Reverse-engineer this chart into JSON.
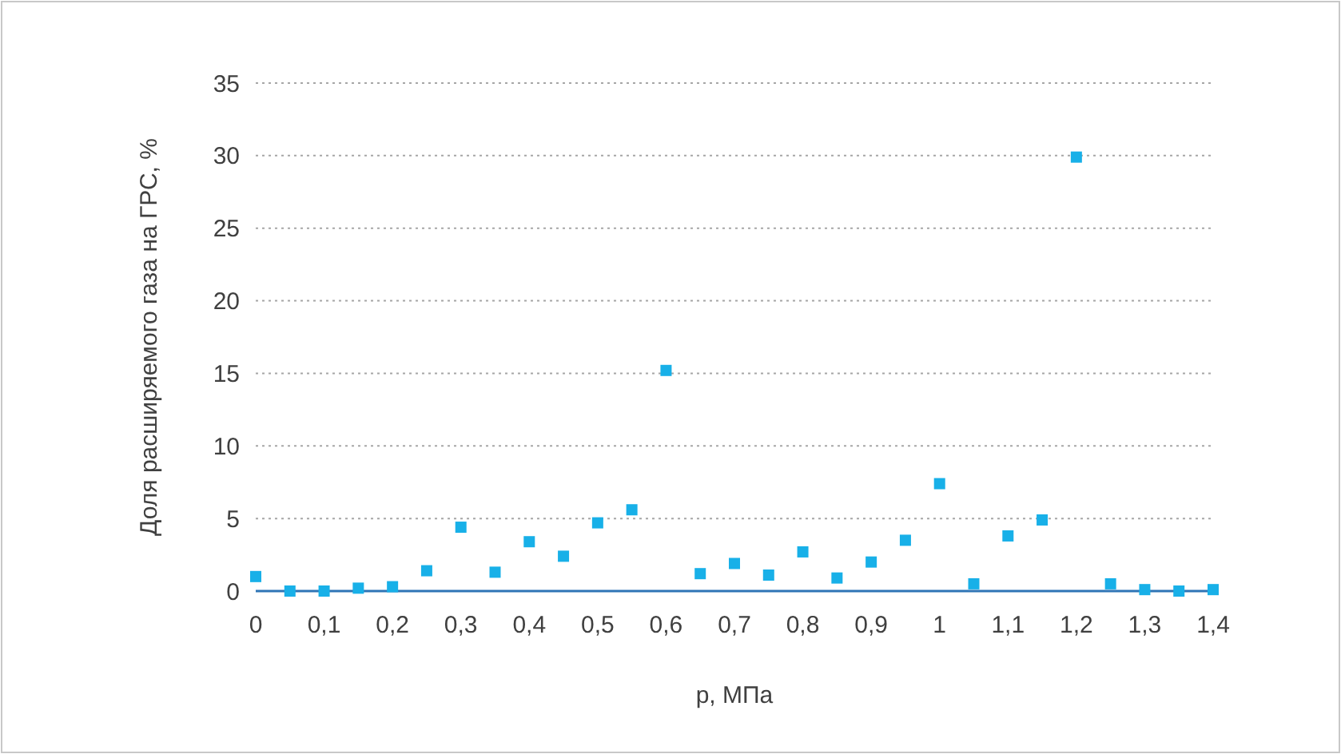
{
  "chart_data": {
    "type": "scatter",
    "xlabel": "p, МПа",
    "ylabel": "Доля расширяемого газа на ГРС, %",
    "x": [
      0,
      0.05,
      0.1,
      0.15,
      0.2,
      0.25,
      0.3,
      0.35,
      0.4,
      0.45,
      0.5,
      0.55,
      0.6,
      0.65,
      0.7,
      0.75,
      0.8,
      0.85,
      0.9,
      0.95,
      1,
      1.05,
      1.1,
      1.15,
      1.2,
      1.25,
      1.3,
      1.35,
      1.4
    ],
    "series": [
      {
        "color": "#18b0e8",
        "values": [
          1.0,
          0,
          0,
          0.2,
          0.3,
          1.4,
          4.4,
          1.3,
          3.4,
          2.4,
          4.7,
          5.6,
          15.2,
          1.2,
          1.9,
          1.1,
          2.7,
          0.9,
          2.0,
          3.5,
          7.4,
          0.5,
          3.8,
          4.9,
          29.9,
          0.5,
          0.1,
          0,
          0.1
        ]
      }
    ],
    "xlim": [
      0,
      1.4
    ],
    "xticks": [
      0,
      {
        "value": 0.1,
        "label": "0,1"
      },
      {
        "value": 0.2,
        "label": "0,2"
      },
      {
        "value": 0.3,
        "label": "0,3"
      },
      {
        "value": 0.4,
        "label": "0,4"
      },
      {
        "value": 0.5,
        "label": "0,5"
      },
      {
        "value": 0.6,
        "label": "0,6"
      },
      {
        "value": 0.7,
        "label": "0,7"
      },
      {
        "value": 0.8,
        "label": "0,8"
      },
      {
        "value": 0.9,
        "label": "0,9"
      },
      1,
      {
        "value": 1.1,
        "label": "1,1"
      },
      {
        "value": 1.2,
        "label": "1,2"
      },
      {
        "value": 1.3,
        "label": "1,3"
      },
      {
        "value": 1.4,
        "label": "1,4"
      }
    ],
    "ylim": [
      0,
      35
    ],
    "yticks": [
      0,
      5,
      10,
      15,
      20,
      25,
      30,
      35
    ],
    "grid": "y",
    "marker": "square"
  }
}
